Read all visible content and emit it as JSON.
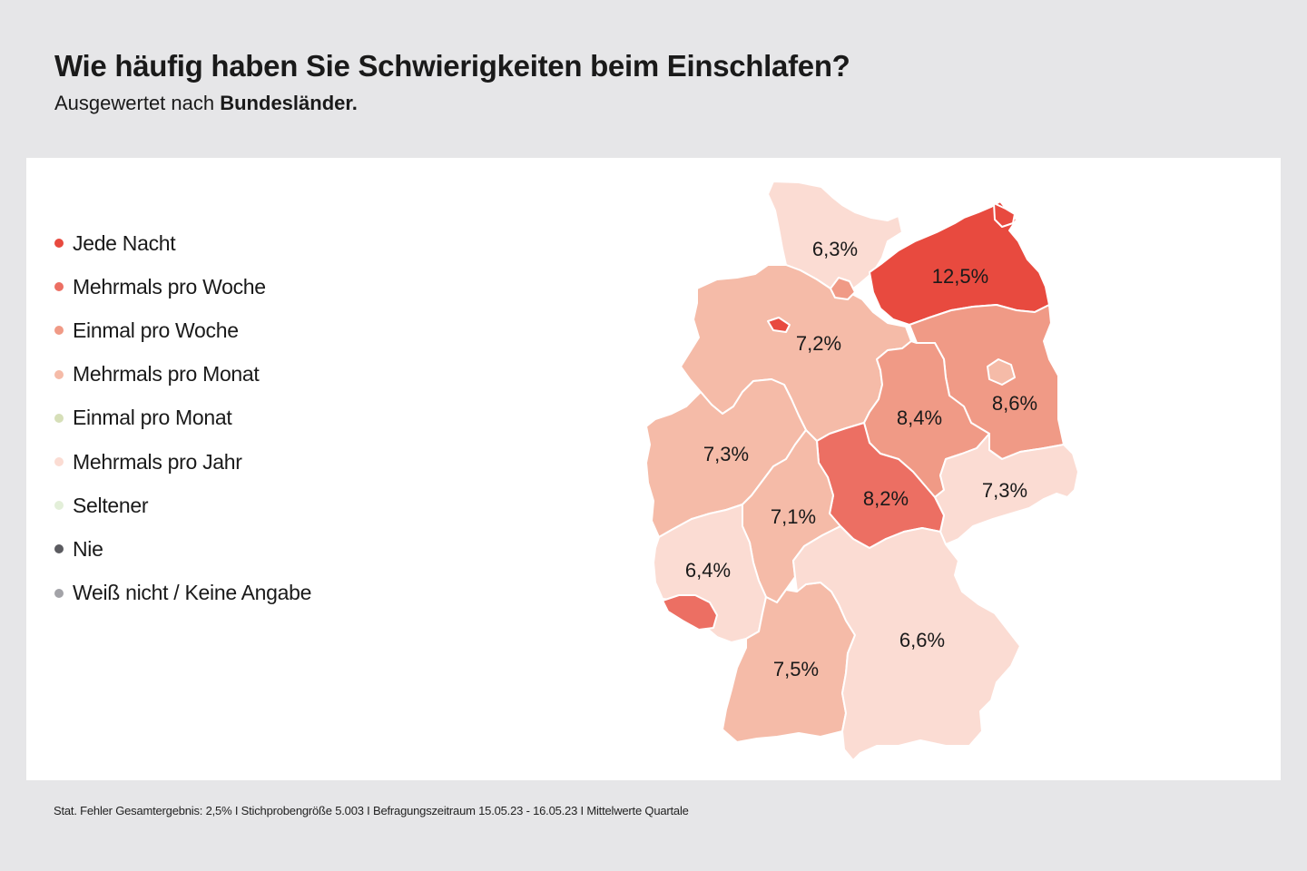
{
  "header": {
    "title": "Wie häufig haben Sie Schwierigkeiten beim Einschlafen?",
    "subtitle_prefix": "Ausgewertet nach",
    "subtitle_bold": "Bundesländer."
  },
  "legend": [
    {
      "label": "Jede Nacht",
      "color": "#e84a3f"
    },
    {
      "label": "Mehrmals pro Woche",
      "color": "#ec6f63"
    },
    {
      "label": "Einmal pro Woche",
      "color": "#f09a86"
    },
    {
      "label": "Mehrmals pro Monat",
      "color": "#f5bba8"
    },
    {
      "label": "Einmal pro Monat",
      "color": "#d6dfb8"
    },
    {
      "label": "Mehrmals pro Jahr",
      "color": "#fbdcd3"
    },
    {
      "label": "Seltener",
      "color": "#e3efd9"
    },
    {
      "label": "Nie",
      "color": "#5b5b60"
    },
    {
      "label": "Weiß nicht / Keine Angabe",
      "color": "#a3a3a8"
    }
  ],
  "regions": [
    {
      "name": "Schleswig-Holstein",
      "value": "6,3%",
      "color": "#fbdcd3"
    },
    {
      "name": "Mecklenburg-Vorpommern",
      "value": "12,5%",
      "color": "#e84a3f"
    },
    {
      "name": "Hamburg",
      "value": "",
      "color": "#f09a86"
    },
    {
      "name": "Bremen",
      "value": "",
      "color": "#e84a3f"
    },
    {
      "name": "Niedersachsen",
      "value": "7,2%",
      "color": "#f5bba8"
    },
    {
      "name": "Brandenburg",
      "value": "8,6%",
      "color": "#f09a86"
    },
    {
      "name": "Berlin",
      "value": "",
      "color": "#f5bba8"
    },
    {
      "name": "Sachsen-Anhalt",
      "value": "8,4%",
      "color": "#f09a86"
    },
    {
      "name": "Nordrhein-Westfalen",
      "value": "7,3%",
      "color": "#f5bba8"
    },
    {
      "name": "Sachsen",
      "value": "7,3%",
      "color": "#fbdcd3"
    },
    {
      "name": "Thüringen",
      "value": "8,2%",
      "color": "#ec6f63"
    },
    {
      "name": "Hessen",
      "value": "7,1%",
      "color": "#f5bba8"
    },
    {
      "name": "Rheinland-Pfalz",
      "value": "6,4%",
      "color": "#fbdcd3"
    },
    {
      "name": "Saarland",
      "value": "",
      "color": "#ec6f63"
    },
    {
      "name": "Baden-Württemberg",
      "value": "7,5%",
      "color": "#f5bba8"
    },
    {
      "name": "Bayern",
      "value": "6,6%",
      "color": "#fbdcd3"
    }
  ],
  "footer": "Stat. Fehler Gesamtergebnis: 2,5% I Stichprobengröße 5.003 I Befragungszeitraum 15.05.23 - 16.05.23 I Mittelwerte Quartale"
}
